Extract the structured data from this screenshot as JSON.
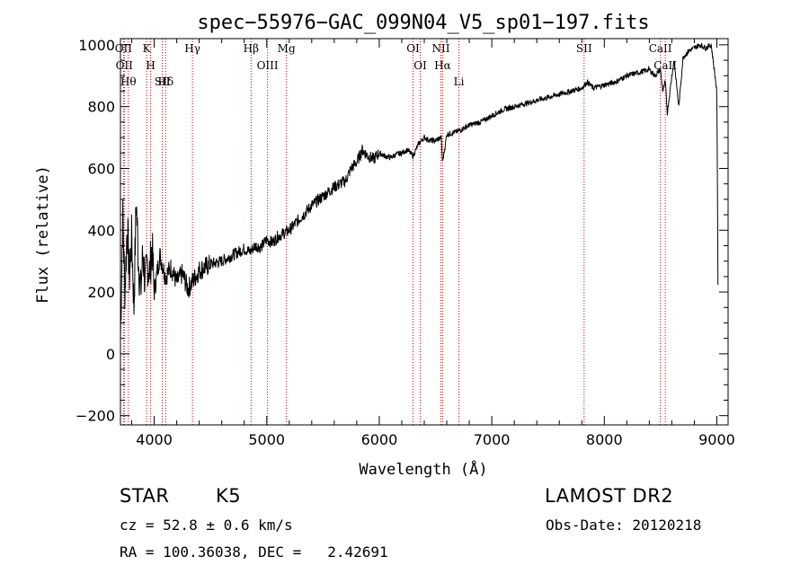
{
  "chart_data": {
    "type": "line",
    "title": "spec−55976−GAC_099N04_V5_sp01−197.fits",
    "xlabel": "Wavelength (Å)",
    "ylabel": "Flux (relative)",
    "xlim": [
      3700,
      9100
    ],
    "ylim": [
      -230,
      1020
    ],
    "x_ticks": [
      4000,
      5000,
      6000,
      7000,
      8000,
      9000
    ],
    "y_ticks": [
      -200,
      0,
      200,
      400,
      600,
      800,
      1000
    ],
    "x_tick_labels": [
      "4000",
      "5000",
      "6000",
      "7000",
      "8000",
      "9000"
    ],
    "y_tick_labels": [
      "−200",
      "0",
      "200",
      "400",
      "600",
      "800",
      "1000"
    ],
    "grid": false,
    "legend": "none",
    "line_color": "#000000",
    "marker_line_color": "#cc0000",
    "series": [
      {
        "x": [
          3700,
          3720,
          3740,
          3760,
          3780,
          3800,
          3820,
          3840,
          3860,
          3880,
          3900,
          3920,
          3940,
          3960,
          3980,
          4000,
          4050,
          4100,
          4150,
          4200,
          4250,
          4300,
          4350,
          4400,
          4450,
          4500,
          4600,
          4700,
          4800,
          4850,
          4900,
          4950,
          5000,
          5050,
          5100,
          5150,
          5200,
          5300,
          5400,
          5500,
          5600,
          5700,
          5750,
          5800,
          5850,
          5900,
          5950,
          6000,
          6050,
          6100,
          6150,
          6200,
          6250,
          6300,
          6350,
          6400,
          6450,
          6500,
          6550,
          6563,
          6600,
          6650,
          6700,
          6750,
          6800,
          6900,
          7000,
          7100,
          7200,
          7300,
          7400,
          7500,
          7600,
          7700,
          7800,
          7850,
          7900,
          8000,
          8100,
          8200,
          8300,
          8400,
          8450,
          8498,
          8520,
          8542,
          8560,
          8600,
          8620,
          8662,
          8700,
          8750,
          8800,
          8850,
          8900,
          8950,
          9000,
          9010
        ],
        "values": [
          50,
          450,
          200,
          420,
          250,
          380,
          150,
          500,
          300,
          200,
          330,
          220,
          300,
          260,
          350,
          200,
          320,
          250,
          280,
          230,
          260,
          210,
          240,
          270,
          280,
          290,
          300,
          320,
          340,
          330,
          350,
          345,
          370,
          360,
          380,
          390,
          400,
          440,
          480,
          510,
          540,
          560,
          600,
          620,
          660,
          640,
          630,
          650,
          640,
          635,
          645,
          650,
          660,
          640,
          680,
          700,
          690,
          690,
          700,
          620,
          710,
          715,
          720,
          730,
          740,
          750,
          770,
          790,
          800,
          810,
          820,
          830,
          840,
          850,
          860,
          880,
          860,
          870,
          880,
          900,
          910,
          920,
          900,
          920,
          850,
          880,
          780,
          900,
          950,
          800,
          960,
          980,
          990,
          1000,
          990,
          1000,
          850,
          230
        ]
      }
    ],
    "line_markers": [
      {
        "x": 3727,
        "label": "OII"
      },
      {
        "x": 3734,
        "label": "OII"
      },
      {
        "x": 3770,
        "label": "Hθ"
      },
      {
        "x": 3933,
        "label": "K"
      },
      {
        "x": 3968,
        "label": "H"
      },
      {
        "x": 4072,
        "label": "SII"
      },
      {
        "x": 4102,
        "label": "Hδ"
      },
      {
        "x": 4340,
        "label": "Hγ"
      },
      {
        "x": 4861,
        "label": "Hβ"
      },
      {
        "x": 5007,
        "label": "OIII"
      },
      {
        "x": 5175,
        "label": "Mg"
      },
      {
        "x": 6300,
        "label": "OI"
      },
      {
        "x": 6364,
        "label": "OI"
      },
      {
        "x": 6548,
        "label": "NII"
      },
      {
        "x": 6563,
        "label": "Hα"
      },
      {
        "x": 6708,
        "label": "Li"
      },
      {
        "x": 7820,
        "label": "SII"
      },
      {
        "x": 8498,
        "label": "CaII"
      },
      {
        "x": 8542,
        "label": "CaII"
      }
    ]
  },
  "info": {
    "class_label": "STAR",
    "subclass": "K5",
    "survey": "LAMOST DR2",
    "redshift_line": "cz = 52.8 ± 0.6 km/s",
    "obs_date_line": "Obs-Date: 20120218",
    "coords_line": "RA = 100.36038, DEC =   2.42691"
  }
}
